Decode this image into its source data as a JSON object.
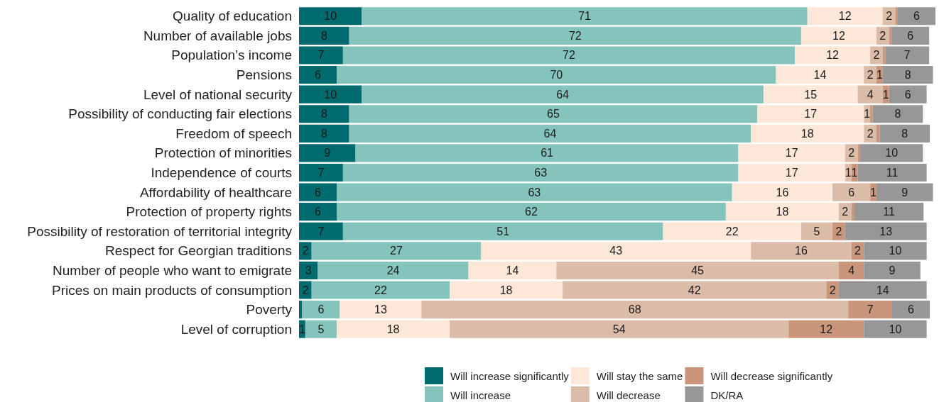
{
  "chart_data": {
    "type": "bar",
    "orientation": "horizontal",
    "stacked": true,
    "legend": "bottom",
    "tick_labels": "y",
    "categories": [
      "Quality of education",
      "Number of available jobs",
      "Population’s income",
      "Pensions",
      "Level of national security",
      "Possibility of conducting fair elections",
      "Freedom of speech",
      "Protection of minorities",
      "Independence of courts",
      "Affordability of healthcare",
      "Protection of property rights",
      "Possibility of restoration of territorial integrity",
      "Respect for Georgian traditions",
      "Number of people who want to emigrate",
      "Prices on main products of consumption",
      "Poverty",
      "Level of corruption"
    ],
    "series": [
      {
        "name": "Will increase significantly",
        "color": "#006b6e",
        "values": [
          10,
          8,
          7,
          6,
          10,
          8,
          8,
          9,
          7,
          6,
          6,
          7,
          2,
          3,
          2,
          0.5,
          1
        ],
        "value_labels": [
          "10",
          "8",
          "7",
          "6",
          "10",
          "8",
          "8",
          "9",
          "7",
          "6",
          "6",
          "7",
          "2",
          "3",
          "2",
          null,
          "1"
        ]
      },
      {
        "name": "Will increase",
        "color": "#85c4bc",
        "values": [
          71,
          72,
          72,
          70,
          64,
          65,
          64,
          61,
          63,
          63,
          62,
          51,
          27,
          24,
          22,
          6,
          5
        ],
        "value_labels": [
          "71",
          "72",
          "72",
          "70",
          "64",
          "65",
          "64",
          "61",
          "63",
          "63",
          "62",
          "51",
          "27",
          "24",
          "22",
          "6",
          "5"
        ]
      },
      {
        "name": "Will stay the same",
        "color": "#fde7d8",
        "values": [
          12,
          12,
          12,
          14,
          15,
          17,
          18,
          17,
          17,
          16,
          18,
          22,
          43,
          14,
          18,
          13,
          18
        ],
        "value_labels": [
          "12",
          "12",
          "12",
          "14",
          "15",
          "17",
          "18",
          "17",
          "17",
          "16",
          "18",
          "22",
          "43",
          "14",
          "18",
          "13",
          "18"
        ]
      },
      {
        "name": "Will decrease",
        "color": "#dbbca8",
        "values": [
          2,
          2,
          2,
          2,
          4,
          1,
          2,
          2,
          1,
          6,
          2,
          5,
          16,
          45,
          42,
          68,
          54
        ],
        "value_labels": [
          "2",
          "2",
          "2",
          "2",
          "4",
          "1",
          "2",
          "2",
          "1",
          "6",
          "2",
          "5",
          "16",
          "45",
          "42",
          "68",
          "54"
        ]
      },
      {
        "name": "Will decrease significantly",
        "color": "#c9967b",
        "values": [
          0.4,
          0.4,
          0.4,
          1,
          1,
          0.4,
          0.5,
          0.4,
          1,
          1,
          0.5,
          2,
          2,
          4,
          2,
          7,
          12
        ],
        "value_labels": [
          null,
          null,
          null,
          "1",
          "1",
          null,
          null,
          null,
          "1",
          "1",
          null,
          "2",
          "2",
          "4",
          "2",
          "7",
          "12"
        ]
      },
      {
        "name": "DK/RA",
        "color": "#979797",
        "values": [
          6,
          6,
          7,
          8,
          6,
          8,
          8,
          10,
          11,
          9,
          11,
          13,
          10,
          9,
          14,
          6,
          10
        ],
        "value_labels": [
          "6",
          "6",
          "7",
          "8",
          "6",
          "8",
          "8",
          "10",
          "11",
          "9",
          "11",
          "13",
          "10",
          "9",
          "14",
          "6",
          "10"
        ]
      }
    ]
  }
}
